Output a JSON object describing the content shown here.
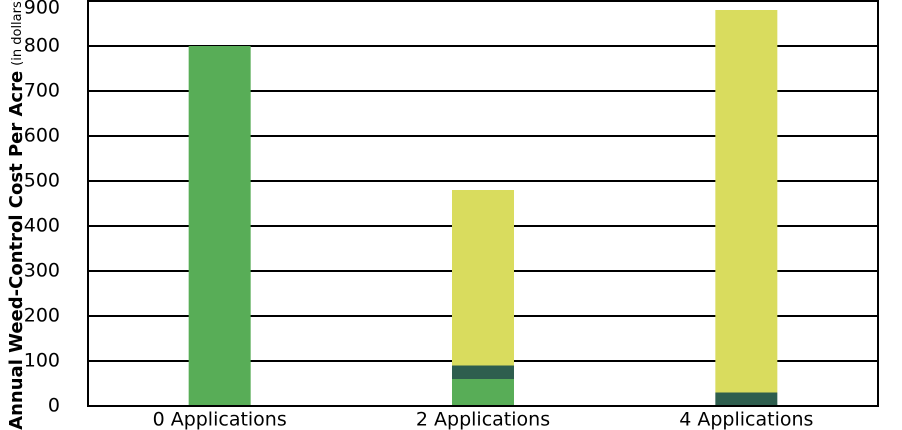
{
  "chart_data": {
    "type": "stacked_bar",
    "y_label": "Annual Weed-Control Cost Per Acre",
    "y_label_note": "(in dollars)",
    "categories": [
      "0 Applications",
      "2 Applications",
      "4 Applications"
    ],
    "series": [
      {
        "color": "#58ad57",
        "values": [
          800,
          60,
          0
        ]
      },
      {
        "color": "#2e5e4e",
        "values": [
          0,
          30,
          30
        ]
      },
      {
        "color": "#d9dc5e",
        "values": [
          0,
          390,
          850
        ]
      }
    ],
    "ylim": [
      0,
      900
    ],
    "yticks": [
      0,
      100,
      200,
      300,
      400,
      500,
      600,
      700,
      800,
      900
    ],
    "grid": true
  }
}
